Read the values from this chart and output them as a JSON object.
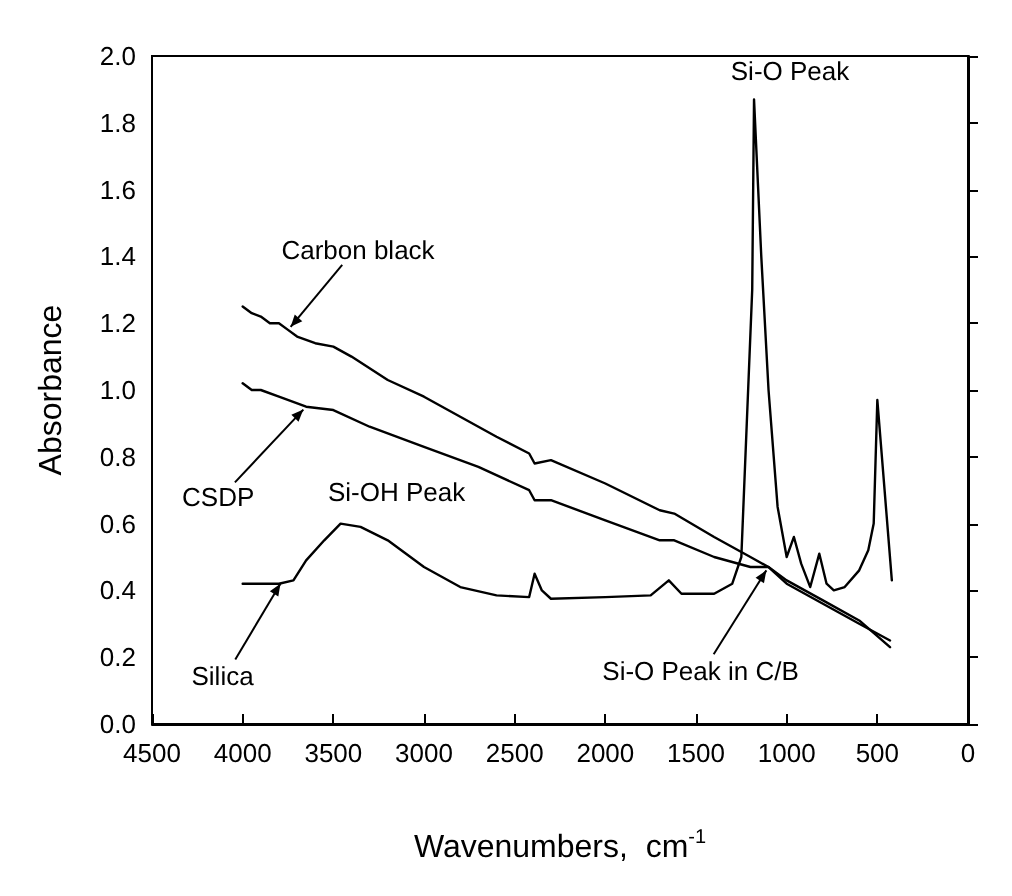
{
  "chart_data": {
    "type": "line",
    "xlabel": "Wavenumbers,  cm$^{-1}$",
    "ylabel": "Absorbance",
    "xlim": [
      4500,
      0
    ],
    "xticks": [
      4500,
      4000,
      3500,
      3000,
      2500,
      2000,
      1500,
      1000,
      500,
      0
    ],
    "ylim": [
      0,
      2
    ],
    "yticks": [
      {
        "value": 0,
        "label": "0.0"
      },
      {
        "value": 0.2,
        "label": "0.2"
      },
      {
        "value": 0.4,
        "label": "0.4"
      },
      {
        "value": 0.6,
        "label": "0.6"
      },
      {
        "value": 0.8,
        "label": "0.8"
      },
      {
        "value": 1,
        "label": "1.0"
      },
      {
        "value": 1.2,
        "label": "1.2"
      },
      {
        "value": 1.4,
        "label": "1.4"
      },
      {
        "value": 1.6,
        "label": "1.6"
      },
      {
        "value": 1.8,
        "label": "1.8"
      },
      {
        "value": 2,
        "label": "2.0"
      }
    ],
    "grid": false,
    "marker": "none",
    "line_style": "solid",
    "series": [
      {
        "color": "#000000",
        "x": [
          4000,
          3950,
          3900,
          3850,
          3800,
          3750,
          3700,
          3600,
          3500,
          3400,
          3200,
          3000,
          2800,
          2600,
          2420,
          2390,
          2300,
          2000,
          1700,
          1620,
          1400,
          1200,
          1100,
          1000,
          800,
          600,
          430
        ],
        "values": [
          1.25,
          1.23,
          1.22,
          1.2,
          1.2,
          1.18,
          1.16,
          1.14,
          1.13,
          1.1,
          1.03,
          0.98,
          0.92,
          0.86,
          0.81,
          0.78,
          0.79,
          0.72,
          0.64,
          0.63,
          0.56,
          0.5,
          0.47,
          0.43,
          0.37,
          0.31,
          0.23
        ]
      },
      {
        "color": "#000000",
        "x": [
          4000,
          3950,
          3900,
          3800,
          3650,
          3500,
          3300,
          3000,
          2700,
          2420,
          2390,
          2300,
          2000,
          1700,
          1620,
          1400,
          1200,
          1100,
          1000,
          800,
          600,
          430
        ],
        "values": [
          1.02,
          1.0,
          1.0,
          0.98,
          0.95,
          0.94,
          0.89,
          0.83,
          0.77,
          0.7,
          0.67,
          0.67,
          0.61,
          0.55,
          0.55,
          0.5,
          0.47,
          0.47,
          0.42,
          0.36,
          0.3,
          0.25
        ]
      },
      {
        "color": "#000000",
        "x": [
          4000,
          3800,
          3720,
          3650,
          3550,
          3460,
          3350,
          3200,
          3000,
          2800,
          2600,
          2420,
          2390,
          2350,
          2300,
          2000,
          1750,
          1650,
          1580,
          1400,
          1300,
          1250,
          1220,
          1190,
          1180,
          1140,
          1100,
          1050,
          1000,
          960,
          920,
          870,
          820,
          780,
          740,
          680,
          600,
          550,
          520,
          500,
          460,
          420
        ],
        "values": [
          0.42,
          0.42,
          0.43,
          0.49,
          0.55,
          0.6,
          0.59,
          0.55,
          0.47,
          0.41,
          0.385,
          0.38,
          0.45,
          0.4,
          0.375,
          0.38,
          0.385,
          0.43,
          0.39,
          0.39,
          0.42,
          0.5,
          0.9,
          1.3,
          1.87,
          1.4,
          1.0,
          0.65,
          0.5,
          0.56,
          0.48,
          0.41,
          0.51,
          0.42,
          0.4,
          0.41,
          0.46,
          0.52,
          0.6,
          0.97,
          0.7,
          0.43
        ]
      }
    ],
    "annotations": [
      {
        "text": "Carbon black",
        "x": 3750,
        "y": 1.18
      },
      {
        "text": "CSDP",
        "x": 3650,
        "y": 0.95
      },
      {
        "text": "Silica",
        "x": 3780,
        "y": 0.43
      },
      {
        "text": "Si-OH Peak",
        "x": 3460,
        "y": 0.6
      },
      {
        "text": "Si-O Peak",
        "x": 1180,
        "y": 1.87
      },
      {
        "text": "Si-O Peak in C/B",
        "x": 1100,
        "y": 0.47
      }
    ]
  }
}
